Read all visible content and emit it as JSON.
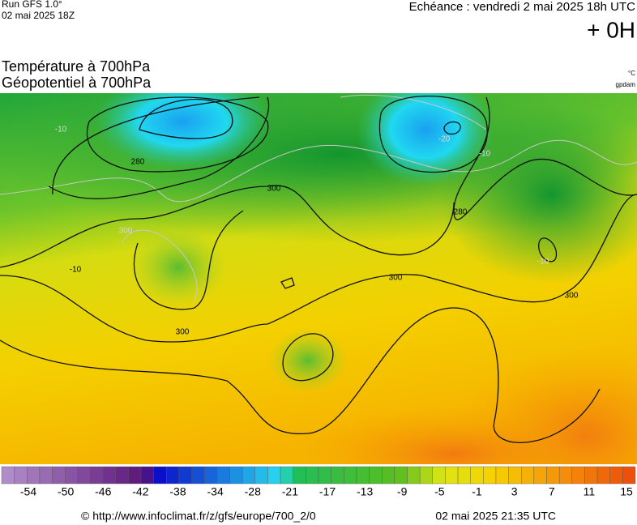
{
  "header": {
    "run": "Run GFS 1.0°",
    "run_date": "02 mai 2025 18Z",
    "valid": "Echéance : vendredi 2 mai 2025 18h UTC",
    "lead": "+ 0H",
    "title_1": "Température à 700hPa",
    "title_2": "Géopotentiel à 700hPa",
    "unit_1": "°C",
    "unit_2": "gpdam"
  },
  "map": {
    "contour_labels": [
      "-10",
      "280",
      "300",
      "-10",
      "300",
      "300",
      "300",
      "-20",
      "-10",
      "280",
      "-10",
      "300"
    ]
  },
  "colorbar": {
    "labels": [
      -54,
      -50,
      -46,
      -42,
      -38,
      -34,
      -28,
      -21,
      -17,
      -13,
      -9,
      -5,
      -1,
      3,
      7,
      11,
      15
    ]
  },
  "footer": {
    "url": "© http://www.infoclimat.fr/z/gfs/europe/700_2/0",
    "generated": "02 mai 2025 21:35 UTC"
  }
}
